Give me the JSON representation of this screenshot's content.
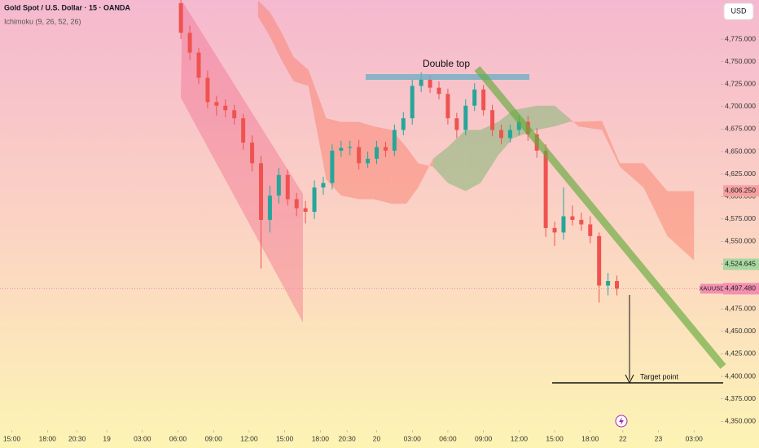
{
  "chart_data": {
    "type": "candlestick",
    "title": "Gold Spot / U.S. Dollar · 15 · OANDA",
    "indicator": "Ichimoku (9, 26, 52, 26)",
    "currency": "USD",
    "symbol": "XAUUSD",
    "annotations": {
      "double_top": "Double top",
      "target": "Target point"
    },
    "xlim": [
      0,
      243
    ],
    "ylim": [
      4343,
      4818.5
    ],
    "xticks": [
      {
        "value": 4,
        "label": "15:00"
      },
      {
        "value": 16,
        "label": "18:00"
      },
      {
        "value": 26,
        "label": "20:30"
      },
      {
        "value": 36,
        "label": "19"
      },
      {
        "value": 48,
        "label": "03:00"
      },
      {
        "value": 60,
        "label": "06:00"
      },
      {
        "value": 72,
        "label": "09:00"
      },
      {
        "value": 84,
        "label": "12:00"
      },
      {
        "value": 96,
        "label": "15:00"
      },
      {
        "value": 108,
        "label": "18:00"
      },
      {
        "value": 117,
        "label": "20:30"
      },
      {
        "value": 127,
        "label": "20"
      },
      {
        "value": 139,
        "label": "03:00"
      },
      {
        "value": 151,
        "label": "06:00"
      },
      {
        "value": 163,
        "label": "09:00"
      },
      {
        "value": 175,
        "label": "12:00"
      },
      {
        "value": 187,
        "label": "15:00"
      },
      {
        "value": 199,
        "label": "18:00"
      },
      {
        "value": 210,
        "label": "22"
      },
      {
        "value": 222,
        "label": "23"
      },
      {
        "value": 234,
        "label": "03:00"
      }
    ],
    "yticks": [
      {
        "value": 4350,
        "label": "4,350.000"
      },
      {
        "value": 4375,
        "label": "4,375.000"
      },
      {
        "value": 4400,
        "label": "4,400.000"
      },
      {
        "value": 4425,
        "label": "4,425.000"
      },
      {
        "value": 4450,
        "label": "4,450.000"
      },
      {
        "value": 4475,
        "label": "4,475.000"
      },
      {
        "value": 4500,
        "label": "4,500.000"
      },
      {
        "value": 4525,
        "label": "4,525.000"
      },
      {
        "value": 4550,
        "label": "4,550.000"
      },
      {
        "value": 4575,
        "label": "4,575.000"
      },
      {
        "value": 4600,
        "label": "4,600.000"
      },
      {
        "value": 4625,
        "label": "4,625.000"
      },
      {
        "value": 4650,
        "label": "4,650.000"
      },
      {
        "value": 4675,
        "label": "4,675.000"
      },
      {
        "value": 4700,
        "label": "4,700.000"
      },
      {
        "value": 4725,
        "label": "4,725.000"
      },
      {
        "value": 4750,
        "label": "4,750.000"
      },
      {
        "value": 4775,
        "label": "4,775.000"
      }
    ],
    "up_color": "#26a69a",
    "down_color": "#ef5350",
    "x": [
      61,
      64,
      67,
      70,
      73,
      76,
      79,
      82,
      85,
      88,
      91,
      94,
      97,
      100,
      103,
      106,
      109,
      112,
      115,
      118,
      121,
      124,
      127,
      130,
      133,
      136,
      139,
      142,
      145,
      148,
      151,
      154,
      157,
      160,
      163,
      166,
      169,
      172,
      175,
      178,
      181,
      184,
      187,
      190,
      193,
      196,
      199,
      202,
      205,
      208
    ],
    "open": [
      4815,
      4782,
      4760,
      4732,
      4705,
      4701,
      4696,
      4687,
      4660,
      4637,
      4574,
      4601,
      4624,
      4597,
      4587,
      4583,
      4610,
      4615,
      4651,
      4654,
      4655,
      4637,
      4642,
      4655,
      4651,
      4674,
      4687,
      4723,
      4730,
      4721,
      4714,
      4687,
      4674,
      4701,
      4719,
      4696,
      4674,
      4665,
      4674,
      4683,
      4669,
      4651,
      4565,
      4560,
      4578,
      4574,
      4569,
      4556,
      4501,
      4506
    ],
    "high": [
      4820,
      4790,
      4765,
      4740,
      4712,
      4708,
      4702,
      4692,
      4668,
      4645,
      4612,
      4632,
      4630,
      4604,
      4595,
      4618,
      4622,
      4658,
      4662,
      4662,
      4663,
      4650,
      4662,
      4661,
      4680,
      4694,
      4730,
      4738,
      4735,
      4728,
      4720,
      4693,
      4708,
      4726,
      4724,
      4702,
      4680,
      4680,
      4690,
      4690,
      4676,
      4658,
      4572,
      4610,
      4590,
      4582,
      4578,
      4560,
      4515,
      4512
    ],
    "low": [
      4775,
      4752,
      4725,
      4698,
      4690,
      4688,
      4680,
      4652,
      4628,
      4520,
      4560,
      4592,
      4590,
      4578,
      4570,
      4575,
      4602,
      4608,
      4644,
      4646,
      4630,
      4632,
      4636,
      4644,
      4645,
      4668,
      4680,
      4716,
      4715,
      4708,
      4680,
      4665,
      4668,
      4695,
      4690,
      4667,
      4658,
      4660,
      4668,
      4662,
      4643,
      4555,
      4545,
      4552,
      4568,
      4562,
      4548,
      4482,
      4490,
      4490
    ],
    "close": [
      4782,
      4760,
      4732,
      4705,
      4701,
      4696,
      4687,
      4660,
      4637,
      4574,
      4601,
      4624,
      4597,
      4587,
      4583,
      4610,
      4615,
      4651,
      4654,
      4655,
      4637,
      4642,
      4655,
      4651,
      4674,
      4687,
      4723,
      4730,
      4721,
      4714,
      4687,
      4674,
      4701,
      4719,
      4696,
      4674,
      4665,
      4674,
      4683,
      4669,
      4651,
      4565,
      4560,
      4578,
      4574,
      4569,
      4556,
      4501,
      4506,
      4497.48
    ],
    "cloud": {
      "up_color": "rgba(120,180,110,0.5)",
      "down_color": "rgba(250,120,100,0.45)",
      "x": [
        87,
        91,
        95,
        99,
        104,
        110,
        115,
        121,
        126,
        132,
        137,
        141,
        146,
        151,
        157,
        162,
        168,
        173,
        181,
        187,
        192,
        195,
        203,
        209,
        217,
        225,
        234
      ],
      "span_a": [
        4800,
        4778,
        4751,
        4728,
        4723,
        4619,
        4601,
        4597,
        4597,
        4592,
        4592,
        4610,
        4642,
        4655,
        4674,
        4674,
        4683,
        4696,
        4701,
        4701,
        4687,
        4678,
        4674,
        4633,
        4610,
        4556,
        4529
      ],
      "span_b": [
        4818,
        4805,
        4782,
        4755,
        4741,
        4687,
        4683,
        4683,
        4678,
        4674,
        4655,
        4637,
        4633,
        4615,
        4606,
        4615,
        4646,
        4665,
        4674,
        4678,
        4683,
        4683,
        4684,
        4637,
        4637,
        4606,
        4606
      ]
    },
    "price_labels": [
      {
        "value": 4606.25,
        "label": "4,606.250",
        "color": "#f7a0a0"
      },
      {
        "value": 4524.645,
        "label": "4,524.645",
        "color": "#a8d8a0"
      }
    ],
    "last_price": {
      "value": 4497.48,
      "label": "4,497.480",
      "color": "#f48fb1"
    }
  }
}
